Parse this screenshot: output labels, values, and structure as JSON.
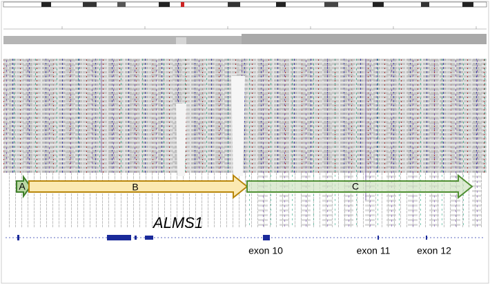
{
  "annotations": {
    "regions": [
      {
        "label": "A"
      },
      {
        "label": "B"
      },
      {
        "label": "C"
      }
    ],
    "gene": "ALMS1",
    "exons": [
      "exon 10",
      "exon 11",
      "exon 12"
    ]
  }
}
